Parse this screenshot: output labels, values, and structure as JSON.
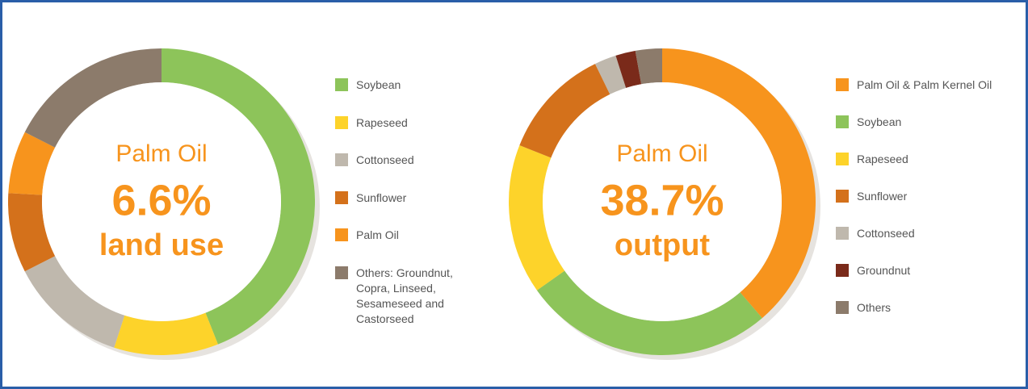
{
  "chart_data": [
    {
      "type": "donut",
      "center_text": [
        "Palm Oil",
        "6.6%",
        "land use"
      ],
      "categories": [
        "Soybean",
        "Rapeseed",
        "Cottonseed",
        "Sunflower",
        "Palm Oil",
        "Others: Groundnut, Copra, Linseed, Sesameseed and Castorseed"
      ],
      "values": [
        44,
        11,
        12.5,
        8.4,
        6.6,
        17.5
      ],
      "colors": [
        "#8dc45a",
        "#fdd32a",
        "#bfb8ad",
        "#d4711b",
        "#f7941d",
        "#8c7b6b"
      ]
    },
    {
      "type": "donut",
      "center_text": [
        "Palm Oil",
        "38.7%",
        "output"
      ],
      "categories": [
        "Palm Oil & Palm Kernel Oil",
        "Soybean",
        "Rapeseed",
        "Sunflower",
        "Cottonseed",
        "Groundnut",
        "Others"
      ],
      "values": [
        38.7,
        26.5,
        15.8,
        11.8,
        2.3,
        2.1,
        2.8
      ],
      "colors": [
        "#f7941d",
        "#8dc45a",
        "#fdd32a",
        "#d4711b",
        "#bfb8ad",
        "#7a2a1a",
        "#8c7b6b"
      ]
    }
  ]
}
